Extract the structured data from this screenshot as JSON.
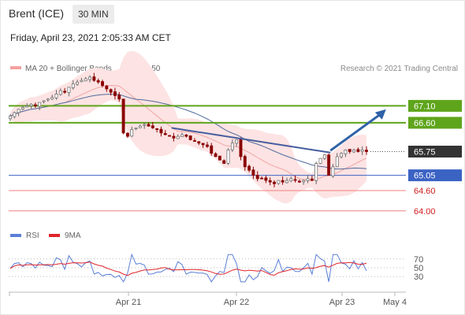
{
  "header": {
    "title": "Brent (ICE)",
    "timeframe": "30 MIN",
    "datetime": "Friday, April 23, 2021 2:05:33 AM CET"
  },
  "legend": {
    "items": [
      {
        "label": "MA 20 + Bollinger Bands",
        "color": "#f4a0a0"
      },
      {
        "label": "MA 50",
        "color": "#4a6496"
      }
    ],
    "credit": "Research © 2021 Trading Central"
  },
  "rsi_legend": {
    "items": [
      {
        "label": "RSI",
        "color": "#5a7fd6"
      },
      {
        "label": "9MA",
        "color": "#e0242a"
      }
    ]
  },
  "colors": {
    "candle_up": "#c4c4c4",
    "candle_down": "#8a0000",
    "bollinger_fill": "#fde3e3",
    "ma20": "#f1a5a5",
    "ma50": "#506b9c",
    "resistance": "#5fa51c",
    "pivot_line": "#3b63c4",
    "support": "#f08080",
    "trendline": "#445c9e",
    "arrow": "#2f62a8",
    "current_price_bg": "#333333",
    "rsi": "#5a7fd6",
    "rsi_ma": "#e0242a"
  },
  "chart_data": {
    "type": "candlestick",
    "instrument": "Brent (ICE)",
    "timeframe": "30 MIN",
    "x_ticks": [
      "Apr 21",
      "Apr 22",
      "Apr 23",
      "May 4"
    ],
    "y_range": [
      63.6,
      67.9
    ],
    "price_levels": [
      {
        "label": "67.10",
        "value": 67.1,
        "kind": "resistance"
      },
      {
        "label": "66.60",
        "value": 66.6,
        "kind": "resistance"
      },
      {
        "label": "65.75",
        "value": 65.75,
        "kind": "current"
      },
      {
        "label": "65.05",
        "value": 65.05,
        "kind": "pivot"
      },
      {
        "label": "64.60",
        "value": 64.6,
        "kind": "support"
      },
      {
        "label": "64.00",
        "value": 64.0,
        "kind": "support"
      }
    ],
    "trendline": [
      {
        "x": 0.41,
        "y": 66.45
      },
      {
        "x": 0.81,
        "y": 65.72
      }
    ],
    "forecast_arrow": [
      {
        "x": 0.81,
        "y": 65.78
      },
      {
        "x": 0.95,
        "y": 67.0
      }
    ],
    "closes": [
      66.8,
      66.9,
      67.0,
      67.05,
      67.1,
      67.15,
      67.1,
      67.2,
      67.25,
      67.3,
      67.35,
      67.45,
      67.55,
      67.5,
      67.65,
      67.75,
      67.8,
      67.85,
      67.9,
      67.95,
      67.85,
      67.8,
      67.7,
      67.6,
      67.5,
      67.4,
      67.3,
      66.3,
      66.2,
      66.4,
      66.45,
      66.5,
      66.55,
      66.5,
      66.45,
      66.4,
      66.3,
      66.25,
      66.2,
      66.15,
      66.2,
      66.25,
      66.2,
      66.1,
      66.05,
      66.0,
      65.95,
      65.9,
      65.7,
      65.6,
      65.5,
      65.4,
      65.8,
      66.0,
      66.1,
      65.6,
      65.3,
      65.2,
      65.05,
      64.95,
      64.95,
      64.9,
      64.85,
      64.8,
      64.9,
      64.85,
      64.9,
      64.95,
      64.9,
      64.85,
      64.9,
      64.95,
      64.9,
      65.4,
      65.55,
      65.65,
      65.05,
      65.3,
      65.6,
      65.7,
      65.8,
      65.75,
      65.8,
      65.75,
      65.8,
      65.75
    ],
    "rsi": {
      "levels": [
        70,
        50,
        30
      ],
      "y_range": [
        0,
        100
      ]
    }
  },
  "axis": {
    "rsi_labels": [
      "70",
      "50",
      "30"
    ]
  }
}
